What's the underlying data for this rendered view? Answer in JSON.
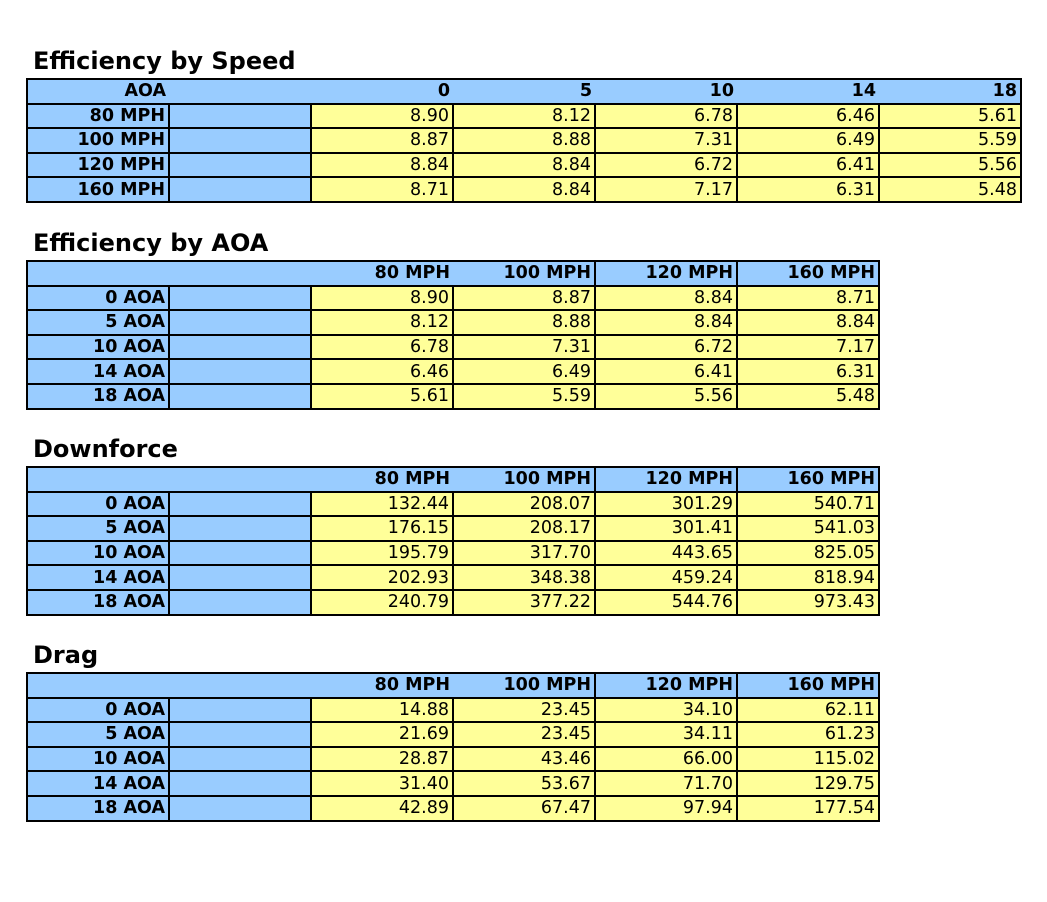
{
  "colors": {
    "header": "#99ccff",
    "value": "#ffff99",
    "border": "#000000"
  },
  "tables": [
    {
      "title": "Efficiency by Speed",
      "corner": "AOA",
      "columns": [
        "0",
        "5",
        "10",
        "14",
        "18"
      ],
      "rows": [
        {
          "label": "80 MPH",
          "values": [
            "8.90",
            "8.12",
            "6.78",
            "6.46",
            "5.61"
          ]
        },
        {
          "label": "100 MPH",
          "values": [
            "8.87",
            "8.88",
            "7.31",
            "6.49",
            "5.59"
          ]
        },
        {
          "label": "120 MPH",
          "values": [
            "8.84",
            "8.84",
            "6.72",
            "6.41",
            "5.56"
          ]
        },
        {
          "label": "160 MPH",
          "values": [
            "8.71",
            "8.84",
            "7.17",
            "6.31",
            "5.48"
          ]
        }
      ]
    },
    {
      "title": "Efficiency by AOA",
      "corner": "",
      "columns": [
        "80 MPH",
        "100 MPH",
        "120 MPH",
        "160 MPH"
      ],
      "rows": [
        {
          "label": "0 AOA",
          "values": [
            "8.90",
            "8.87",
            "8.84",
            "8.71"
          ]
        },
        {
          "label": "5 AOA",
          "values": [
            "8.12",
            "8.88",
            "8.84",
            "8.84"
          ]
        },
        {
          "label": "10 AOA",
          "values": [
            "6.78",
            "7.31",
            "6.72",
            "7.17"
          ]
        },
        {
          "label": "14 AOA",
          "values": [
            "6.46",
            "6.49",
            "6.41",
            "6.31"
          ]
        },
        {
          "label": "18 AOA",
          "values": [
            "5.61",
            "5.59",
            "5.56",
            "5.48"
          ]
        }
      ]
    },
    {
      "title": "Downforce",
      "corner": "",
      "columns": [
        "80 MPH",
        "100 MPH",
        "120 MPH",
        "160 MPH"
      ],
      "rows": [
        {
          "label": "0 AOA",
          "values": [
            "132.44",
            "208.07",
            "301.29",
            "540.71"
          ]
        },
        {
          "label": "5 AOA",
          "values": [
            "176.15",
            "208.17",
            "301.41",
            "541.03"
          ]
        },
        {
          "label": "10 AOA",
          "values": [
            "195.79",
            "317.70",
            "443.65",
            "825.05"
          ]
        },
        {
          "label": "14 AOA",
          "values": [
            "202.93",
            "348.38",
            "459.24",
            "818.94"
          ]
        },
        {
          "label": "18 AOA",
          "values": [
            "240.79",
            "377.22",
            "544.76",
            "973.43"
          ]
        }
      ]
    },
    {
      "title": "Drag",
      "corner": "",
      "columns": [
        "80 MPH",
        "100 MPH",
        "120 MPH",
        "160 MPH"
      ],
      "rows": [
        {
          "label": "0 AOA",
          "values": [
            "14.88",
            "23.45",
            "34.10",
            "62.11"
          ]
        },
        {
          "label": "5 AOA",
          "values": [
            "21.69",
            "23.45",
            "34.11",
            "61.23"
          ]
        },
        {
          "label": "10 AOA",
          "values": [
            "28.87",
            "43.46",
            "66.00",
            "115.02"
          ]
        },
        {
          "label": "14 AOA",
          "values": [
            "31.40",
            "53.67",
            "71.70",
            "129.75"
          ]
        },
        {
          "label": "18 AOA",
          "values": [
            "42.89",
            "67.47",
            "97.94",
            "177.54"
          ]
        }
      ]
    }
  ]
}
